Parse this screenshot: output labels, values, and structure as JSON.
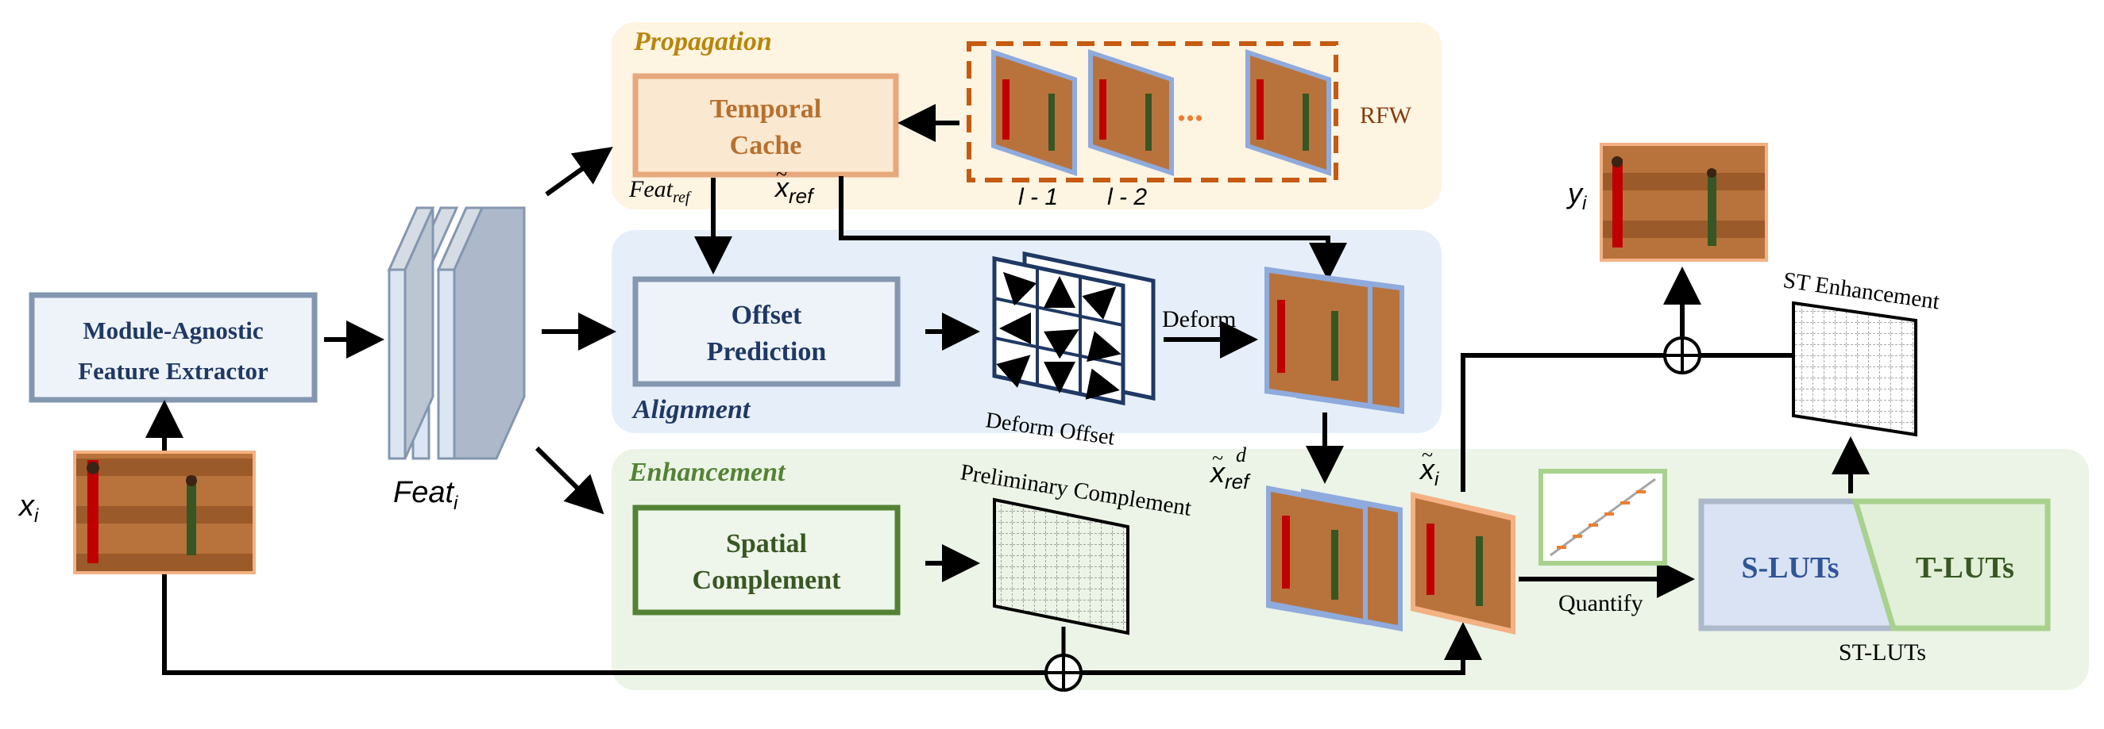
{
  "panels": {
    "propagation": "Propagation",
    "alignment": "Alignment",
    "enhancement": "Enhancement"
  },
  "boxes": {
    "extractor_line1": "Module-Agnostic",
    "extractor_line2": "Feature Extractor",
    "cache_line1": "Temporal",
    "cache_line2": "Cache",
    "offset_line1": "Offset",
    "offset_line2": "Prediction",
    "spatial_line1": "Spatial",
    "spatial_line2": "Complement",
    "s_luts": "S-LUTs",
    "t_luts": "T-LUTs"
  },
  "labels": {
    "rfw": "RFW",
    "frame_minus1": "l - 1",
    "frame_minus2": "l - 2",
    "ellipsis": "...",
    "feat_ref": "Feat",
    "feat_ref_sub": "ref",
    "x_ref": "x",
    "x_ref_sub": "ref",
    "x_ref_d": "x",
    "x_ref_d_sub": "ref",
    "x_ref_d_sup": "d",
    "x_i_tilde": "x",
    "x_i_tilde_sub": "i",
    "feat_i": "Feat",
    "feat_i_sub": "i",
    "x_i": "x",
    "x_i_sub": "i",
    "y_i": "y",
    "y_i_sub": "i",
    "deform": "Deform",
    "deform_offset": "Deform Offset",
    "preliminary_complement": "Preliminary Complement",
    "st_enhancement": "ST Enhancement",
    "quantify": "Quantify",
    "st_luts": "ST-LUTs"
  },
  "colors": {
    "propagation_bg": "#fdf4e1",
    "alignment_bg": "#e6eff9",
    "enhancement_bg": "#ebf4e6",
    "propagation_text": "#b8860b",
    "alignment_text": "#1f3864",
    "enhancement_text": "#548235",
    "cache_border": "#e6a87c",
    "cache_fill": "#fbe8d0",
    "offset_border": "#8497b0",
    "spatial_border": "#548235",
    "s_luts_text": "#2f5597",
    "t_luts_text": "#385723",
    "rfw_dash": "#c55a11"
  }
}
